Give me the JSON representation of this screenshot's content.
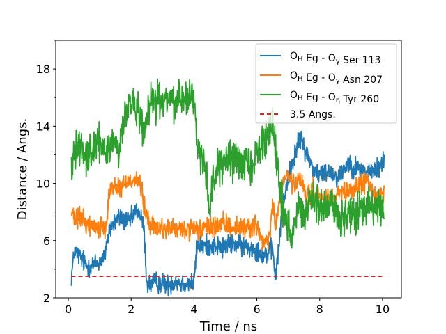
{
  "chart_data": {
    "type": "line",
    "xlabel": "Time / ns",
    "ylabel": "Distance / Angs.",
    "xlim": [
      -0.4,
      10.6
    ],
    "ylim": [
      2,
      20
    ],
    "xticks": [
      0,
      2,
      4,
      6,
      8,
      10
    ],
    "yticks": [
      2,
      6,
      10,
      14,
      18
    ],
    "yminor_ticks": [
      4,
      8,
      12,
      16,
      20
    ],
    "legend_position": "top-right",
    "series": [
      {
        "name": "OH Eg - Oγ Ser 113",
        "legend": {
          "a": "O",
          "a_sub": "H",
          "b": " Eg - O",
          "b_sub": "γ",
          "c": " Ser 113"
        },
        "color": "#1f77b4",
        "noise": 0.45,
        "x": [
          0.1,
          0.2,
          0.4,
          0.6,
          0.8,
          1.0,
          1.2,
          1.3,
          1.6,
          1.9,
          2.0,
          2.2,
          2.4,
          2.5,
          2.6,
          2.8,
          3.0,
          3.2,
          3.4,
          3.6,
          3.8,
          4.0,
          4.1,
          4.3,
          4.6,
          4.9,
          5.2,
          5.6,
          6.0,
          6.2,
          6.4,
          6.5,
          6.6,
          6.8,
          7.0,
          7.2,
          7.4,
          7.6,
          7.8,
          8.0,
          8.3,
          8.6,
          8.9,
          9.2,
          9.5,
          9.8,
          10.05
        ],
        "y": [
          3.5,
          5.3,
          4.8,
          4.2,
          4.3,
          4.5,
          5.2,
          6.8,
          7.6,
          7.3,
          7.5,
          8.2,
          7.0,
          3.0,
          2.9,
          3.1,
          3.0,
          2.9,
          3.2,
          3.0,
          3.0,
          3.1,
          5.8,
          5.6,
          5.7,
          5.5,
          5.8,
          5.6,
          5.4,
          5.0,
          5.2,
          5.5,
          3.3,
          8.0,
          10.5,
          12.0,
          13.2,
          12.0,
          11.0,
          10.6,
          10.9,
          10.4,
          11.5,
          11.0,
          10.8,
          10.9,
          11.6
        ]
      },
      {
        "name": "OH Eg - Oγ Asn 207",
        "legend": {
          "a": "O",
          "a_sub": "H",
          "b": " Eg - O",
          "b_sub": "γ",
          "c": " Asn 207"
        },
        "color": "#ff7f0e",
        "noise": 0.45,
        "x": [
          0.1,
          0.2,
          0.4,
          0.6,
          0.8,
          1.0,
          1.2,
          1.3,
          1.5,
          1.7,
          1.9,
          2.1,
          2.3,
          2.4,
          2.6,
          2.9,
          3.2,
          3.5,
          3.8,
          4.0,
          4.3,
          4.6,
          5.0,
          5.4,
          5.8,
          6.0,
          6.2,
          6.4,
          6.5,
          6.6,
          6.8,
          7.0,
          7.2,
          7.4,
          7.6,
          7.8,
          8.0,
          8.3,
          8.6,
          8.9,
          9.2,
          9.5,
          9.8,
          10.05
        ],
        "y": [
          8.0,
          7.4,
          7.6,
          7.2,
          7.0,
          6.9,
          7.1,
          9.5,
          9.8,
          9.7,
          10.2,
          10.3,
          10.0,
          8.5,
          7.0,
          6.8,
          6.9,
          6.7,
          6.8,
          6.7,
          6.8,
          7.0,
          7.1,
          6.9,
          7.0,
          7.1,
          5.6,
          6.2,
          8.5,
          7.0,
          10.0,
          10.5,
          9.8,
          10.2,
          9.0,
          9.5,
          9.0,
          8.8,
          9.2,
          9.3,
          9.8,
          10.2,
          9.0,
          9.5
        ]
      },
      {
        "name": "OH Eg - Oη Tyr 260",
        "legend": {
          "a": "O",
          "a_sub": "H",
          "b": " Eg - O",
          "b_sub": "η",
          "c": " Tyr 260"
        },
        "color": "#2ca02c",
        "noise": 0.8,
        "x": [
          0.1,
          0.2,
          0.4,
          0.6,
          0.8,
          1.0,
          1.2,
          1.4,
          1.6,
          1.8,
          2.0,
          2.2,
          2.4,
          2.6,
          2.8,
          3.0,
          3.2,
          3.4,
          3.6,
          3.8,
          4.0,
          4.1,
          4.3,
          4.5,
          4.7,
          5.0,
          5.3,
          5.6,
          5.9,
          6.2,
          6.5,
          6.7,
          6.9,
          7.1,
          7.3,
          7.5,
          7.8,
          8.1,
          8.4,
          8.7,
          9.0,
          9.3,
          9.6,
          9.9,
          10.05
        ],
        "y": [
          11.0,
          12.5,
          12.8,
          12.0,
          12.4,
          12.7,
          12.3,
          13.0,
          12.2,
          15.0,
          15.5,
          15.2,
          13.2,
          15.5,
          15.8,
          15.6,
          16.0,
          15.7,
          16.2,
          16.0,
          15.8,
          12.5,
          12.0,
          8.5,
          11.0,
          11.5,
          11.8,
          11.3,
          11.5,
          13.0,
          14.0,
          10.0,
          7.5,
          6.5,
          8.5,
          7.8,
          9.0,
          8.0,
          8.5,
          7.5,
          7.8,
          8.0,
          8.5,
          8.0,
          8.2
        ]
      },
      {
        "name": "3.5 Angs.",
        "legend": {
          "a": "3.5 Angs.",
          "a_sub": "",
          "b": "",
          "b_sub": "",
          "c": ""
        },
        "color": "#d62728",
        "dashed": true,
        "noise": 0,
        "x": [
          0.1,
          10.05
        ],
        "y": [
          3.5,
          3.5
        ]
      }
    ]
  }
}
